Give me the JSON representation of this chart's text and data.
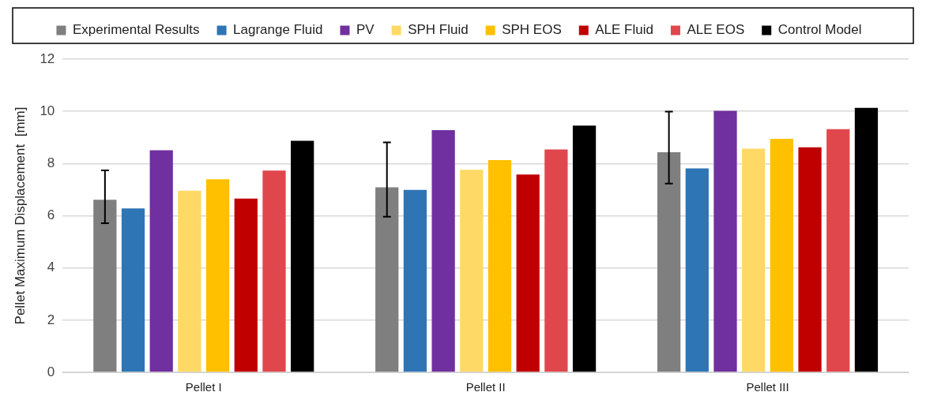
{
  "chart_data": {
    "type": "bar",
    "ylabel": "Pellet Maximum Displacement  [mm]",
    "categories": [
      "Pellet I",
      "Pellet II",
      "Pellet III"
    ],
    "series": [
      {
        "name": "Experimental Results",
        "color": "#7f7f7f",
        "values": [
          6.61,
          7.09,
          8.43
        ],
        "errors": [
          [
            5.71,
            7.74
          ],
          [
            5.96,
            8.81
          ],
          [
            7.23,
            9.99
          ]
        ]
      },
      {
        "name": "Lagrange Fluid",
        "color": "#2e75b6",
        "values": [
          6.28,
          6.99,
          7.81
        ]
      },
      {
        "name": "PV",
        "color": "#7030a0",
        "values": [
          8.51,
          9.28,
          10.02
        ]
      },
      {
        "name": "SPH Fluid",
        "color": "#ffd966",
        "values": [
          6.96,
          7.76,
          8.57
        ]
      },
      {
        "name": "SPH EOS",
        "color": "#ffc000",
        "values": [
          7.4,
          8.13,
          8.95
        ]
      },
      {
        "name": "ALE Fluid",
        "color": "#c00000",
        "values": [
          6.66,
          7.58,
          8.62
        ]
      },
      {
        "name": "ALE EOS",
        "color": "#e0474c",
        "values": [
          7.73,
          8.54,
          9.32
        ]
      },
      {
        "name": "Control Model",
        "color": "#000000",
        "values": [
          8.87,
          9.45,
          10.13
        ]
      }
    ],
    "ylim": [
      0,
      12
    ],
    "yticks": [
      0,
      2,
      4,
      6,
      8,
      10,
      12
    ],
    "grid": "y",
    "legend": "top"
  }
}
